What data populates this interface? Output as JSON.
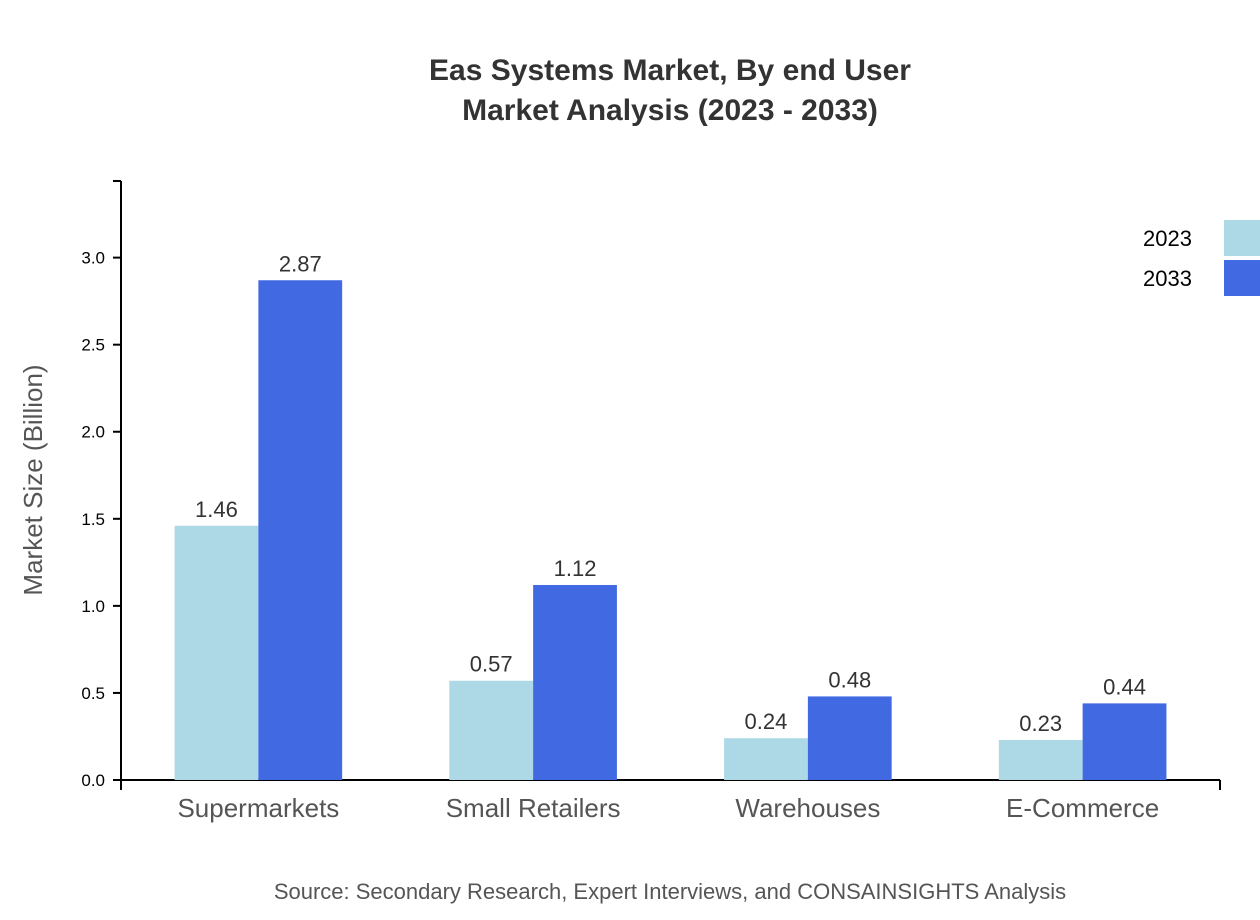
{
  "chart_data": {
    "type": "bar",
    "title": "Eas Systems Market, By end User",
    "subtitle": "Market Analysis (2023 - 2033)",
    "xlabel": "",
    "ylabel": "Market Size (Billion)",
    "categories": [
      "Supermarkets",
      "Small Retailers",
      "Warehouses",
      "E-Commerce"
    ],
    "series": [
      {
        "name": "2023",
        "color": "#ADD8E6",
        "values": [
          1.46,
          0.57,
          0.24,
          0.23
        ]
      },
      {
        "name": "2033",
        "color": "#4169E1",
        "values": [
          2.87,
          1.12,
          0.48,
          0.44
        ]
      }
    ],
    "ylim": [
      0,
      3.44
    ],
    "yticks": [
      "0.0",
      "0.5",
      "1.0",
      "1.5",
      "2.0",
      "2.5",
      "3.0"
    ],
    "grid": false,
    "legend": "top-right",
    "source": "Source: Secondary Research, Expert Interviews, and CONSAINSIGHTS Analysis"
  }
}
